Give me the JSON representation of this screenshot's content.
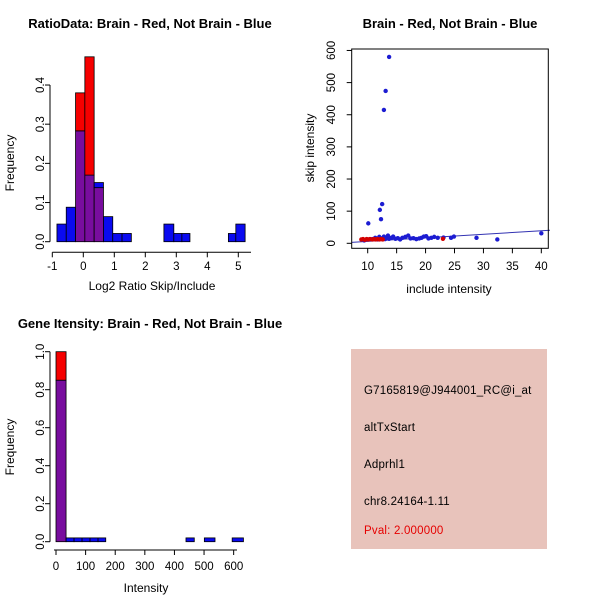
{
  "window": {
    "background": "#FFFFFF"
  },
  "colors": {
    "hist_red": "#F50000",
    "hist_blue": "#0A0AF0",
    "hist_overlap_purple": "#780D9E",
    "scatter_blue": "#1C1CD2",
    "scatter_red": "#D40000",
    "fit_line_blue": "#3333B2",
    "info_background": "#E8C3BB",
    "pval_red": "#E60000",
    "axis_black": "#000000"
  },
  "chart_data": [
    {
      "type": "bar",
      "panel": "tl",
      "title": "RatioData: Brain - Red, Not Brain - Blue",
      "xlabel": "Log2 Ratio Skip/Include",
      "ylabel": "Frequency",
      "xlim": [
        -1,
        5.4
      ],
      "ylim": [
        0,
        0.48
      ],
      "grid": false,
      "legend": "red = Brain, blue = Not Brain (overlap shown purple)",
      "xticks": [
        {
          "v": -1,
          "label": "-1"
        },
        {
          "v": 0,
          "label": "0"
        },
        {
          "v": 1,
          "label": "1"
        },
        {
          "v": 2,
          "label": "2"
        },
        {
          "v": 3,
          "label": "3"
        },
        {
          "v": 4,
          "label": "4"
        },
        {
          "v": 5,
          "label": "5"
        }
      ],
      "yticks": [
        {
          "v": 0,
          "label": "0.0"
        },
        {
          "v": 0.1,
          "label": "0.1"
        },
        {
          "v": 0.2,
          "label": "0.2"
        },
        {
          "v": 0.3,
          "label": "0.3"
        },
        {
          "v": 0.4,
          "label": "0.4"
        }
      ],
      "bars": [
        {
          "x0": -0.85,
          "x1": -0.55,
          "blue": 0.045
        },
        {
          "x0": -0.55,
          "x1": -0.25,
          "blue": 0.088
        },
        {
          "x0": -0.25,
          "x1": 0.05,
          "blue": 0.283,
          "red": 0.38
        },
        {
          "x0": 0.05,
          "x1": 0.35,
          "blue": 0.17,
          "red": 0.472
        },
        {
          "x0": 0.35,
          "x1": 0.65,
          "blue": 0.151,
          "red": 0.138
        },
        {
          "x0": 0.65,
          "x1": 0.95,
          "blue": 0.064
        },
        {
          "x0": 0.95,
          "x1": 1.25,
          "blue": 0.021
        },
        {
          "x0": 1.25,
          "x1": 1.55,
          "blue": 0.021
        },
        {
          "x0": 2.6,
          "x1": 2.92,
          "blue": 0.045
        },
        {
          "x0": 2.92,
          "x1": 3.18,
          "blue": 0.021
        },
        {
          "x0": 3.18,
          "x1": 3.44,
          "blue": 0.021
        },
        {
          "x0": 4.68,
          "x1": 4.92,
          "blue": 0.021
        },
        {
          "x0": 4.92,
          "x1": 5.22,
          "blue": 0.045
        }
      ]
    },
    {
      "type": "scatter",
      "panel": "tr",
      "title": "Brain - Red, Not Brain - Blue",
      "xlabel": "include intensity",
      "ylabel": "skip intensity",
      "xlim": [
        7.2,
        41.5
      ],
      "ylim": [
        -15,
        605
      ],
      "grid": false,
      "xticks": [
        {
          "v": 10,
          "label": "10"
        },
        {
          "v": 15,
          "label": "15"
        },
        {
          "v": 20,
          "label": "20"
        },
        {
          "v": 25,
          "label": "25"
        },
        {
          "v": 30,
          "label": "30"
        },
        {
          "v": 35,
          "label": "35"
        },
        {
          "v": 40,
          "label": "40"
        }
      ],
      "yticks": [
        {
          "v": 0,
          "label": "0"
        },
        {
          "v": 100,
          "label": "100"
        },
        {
          "v": 200,
          "label": "200"
        },
        {
          "v": 300,
          "label": "300"
        },
        {
          "v": 400,
          "label": "400"
        },
        {
          "v": 500,
          "label": "500"
        },
        {
          "v": 600,
          "label": "600"
        }
      ],
      "blue_points": [
        [
          9.4,
          9
        ],
        [
          10.0,
          12
        ],
        [
          10.1,
          62
        ],
        [
          10.8,
          13
        ],
        [
          11.3,
          17
        ],
        [
          11.7,
          12
        ],
        [
          12.0,
          20
        ],
        [
          12.1,
          104
        ],
        [
          12.4,
          15
        ],
        [
          12.3,
          75
        ],
        [
          12.5,
          122
        ],
        [
          12.8,
          21
        ],
        [
          13.0,
          13
        ],
        [
          12.8,
          415
        ],
        [
          13.1,
          474
        ],
        [
          13.3,
          18
        ],
        [
          13.5,
          24
        ],
        [
          13.7,
          14
        ],
        [
          13.7,
          580
        ],
        [
          14.1,
          17
        ],
        [
          14.4,
          21
        ],
        [
          14.8,
          14
        ],
        [
          15.2,
          16
        ],
        [
          15.6,
          12
        ],
        [
          16.0,
          17
        ],
        [
          16.5,
          20
        ],
        [
          17.0,
          24
        ],
        [
          17.4,
          15
        ],
        [
          17.9,
          16
        ],
        [
          18.4,
          13
        ],
        [
          18.9,
          15
        ],
        [
          19.3,
          17
        ],
        [
          19.7,
          21
        ],
        [
          20.1,
          22
        ],
        [
          20.5,
          15
        ],
        [
          21.0,
          17
        ],
        [
          21.5,
          20
        ],
        [
          22.1,
          17
        ],
        [
          23.1,
          18
        ],
        [
          24.4,
          17
        ],
        [
          24.9,
          21
        ],
        [
          28.8,
          17
        ],
        [
          32.4,
          12
        ],
        [
          40.0,
          31
        ]
      ],
      "red_points": [
        [
          8.9,
          12
        ],
        [
          9.2,
          13
        ],
        [
          9.5,
          11
        ],
        [
          9.8,
          13
        ],
        [
          10.1,
          12
        ],
        [
          10.4,
          13
        ],
        [
          10.8,
          12
        ],
        [
          11.1,
          13
        ],
        [
          11.4,
          12
        ],
        [
          11.7,
          13
        ],
        [
          12.0,
          12
        ],
        [
          12.3,
          13
        ],
        [
          12.6,
          12
        ],
        [
          23.0,
          14
        ]
      ],
      "fit_line": {
        "x1": 7.2,
        "y1": 3,
        "x2": 41.5,
        "y2": 40.7
      }
    },
    {
      "type": "bar",
      "panel": "bl",
      "title": "Gene Itensity: Brain - Red, Not Brain - Blue",
      "xlabel": "Intensity",
      "ylabel": "Frequency",
      "xlim": [
        0,
        640
      ],
      "ylim": [
        0,
        1.0
      ],
      "grid": false,
      "xticks": [
        {
          "v": 0,
          "label": "0"
        },
        {
          "v": 100,
          "label": "100"
        },
        {
          "v": 200,
          "label": "200"
        },
        {
          "v": 300,
          "label": "300"
        },
        {
          "v": 400,
          "label": "400"
        },
        {
          "v": 500,
          "label": "500"
        },
        {
          "v": 600,
          "label": "600"
        }
      ],
      "yticks": [
        {
          "v": 0,
          "label": "0.0"
        },
        {
          "v": 0.2,
          "label": "0.2"
        },
        {
          "v": 0.4,
          "label": "0.4"
        },
        {
          "v": 0.6,
          "label": "0.6"
        },
        {
          "v": 0.8,
          "label": "0.8"
        },
        {
          "v": 1.0,
          "label": "1.0"
        }
      ],
      "bars": [
        {
          "x0": 0,
          "x1": 34,
          "blue": 0.85,
          "red": 1.0
        },
        {
          "x0": 34,
          "x1": 61,
          "blue": 0.02
        },
        {
          "x0": 61,
          "x1": 88,
          "blue": 0.02
        },
        {
          "x0": 88,
          "x1": 115,
          "blue": 0.02
        },
        {
          "x0": 115,
          "x1": 142,
          "blue": 0.02
        },
        {
          "x0": 142,
          "x1": 168,
          "blue": 0.02
        },
        {
          "x0": 439,
          "x1": 467,
          "blue": 0.02
        },
        {
          "x0": 501,
          "x1": 537,
          "blue": 0.02
        },
        {
          "x0": 595,
          "x1": 633,
          "blue": 0.02
        }
      ]
    }
  ],
  "info_panel": {
    "background": "#E8C3BB",
    "lines": [
      {
        "text": "G7165819@J944001_RC@i_at",
        "color": "#000000"
      },
      {
        "text": "altTxStart",
        "color": "#000000"
      },
      {
        "text": "Adprhl1",
        "color": "#000000"
      },
      {
        "text": "chr8.24164-1.11",
        "color": "#000000"
      },
      {
        "text": "Pval: 2.000000",
        "color": "#E60000"
      }
    ]
  }
}
